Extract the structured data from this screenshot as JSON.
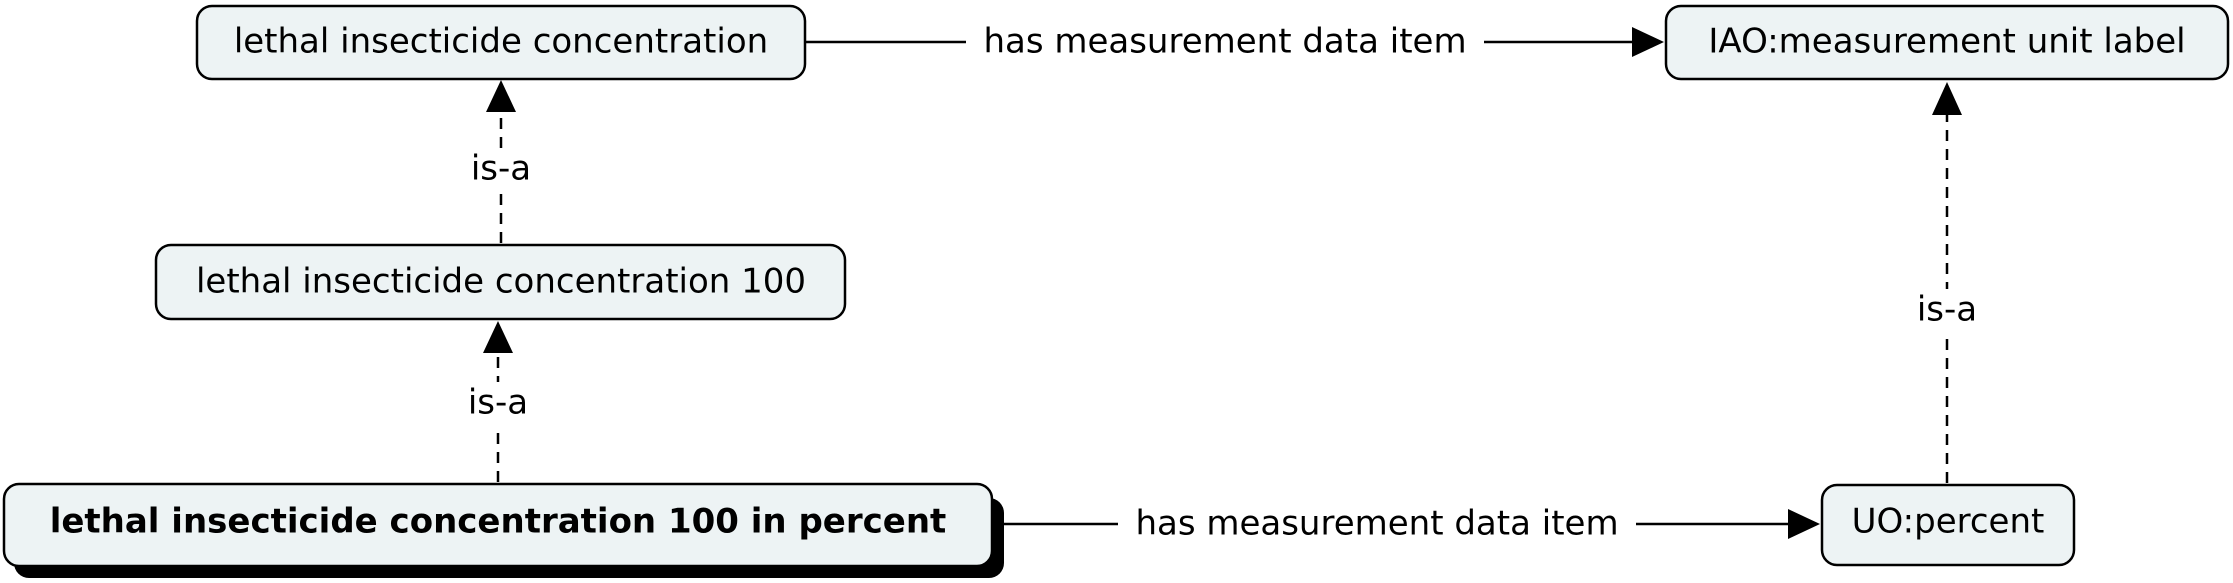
{
  "nodes": {
    "lethal_conc": {
      "label": "lethal insecticide concentration"
    },
    "iao_unit_label": {
      "label": "IAO:measurement unit label"
    },
    "lethal_conc_100": {
      "label": "lethal insecticide concentration 100"
    },
    "lethal_conc_100_percent": {
      "label": "lethal insecticide concentration 100 in percent"
    },
    "uo_percent": {
      "label": "UO:percent"
    }
  },
  "edges": {
    "top_has_measurement": {
      "label": "has measurement data item"
    },
    "bottom_has_measurement": {
      "label": "has measurement data item"
    },
    "isa_upper_left": {
      "label": "is-a"
    },
    "isa_lower_left": {
      "label": "is-a"
    },
    "isa_right": {
      "label": "is-a"
    }
  },
  "colors": {
    "node_fill": "#edf3f4",
    "line": "#000000",
    "background": "#ffffff"
  }
}
